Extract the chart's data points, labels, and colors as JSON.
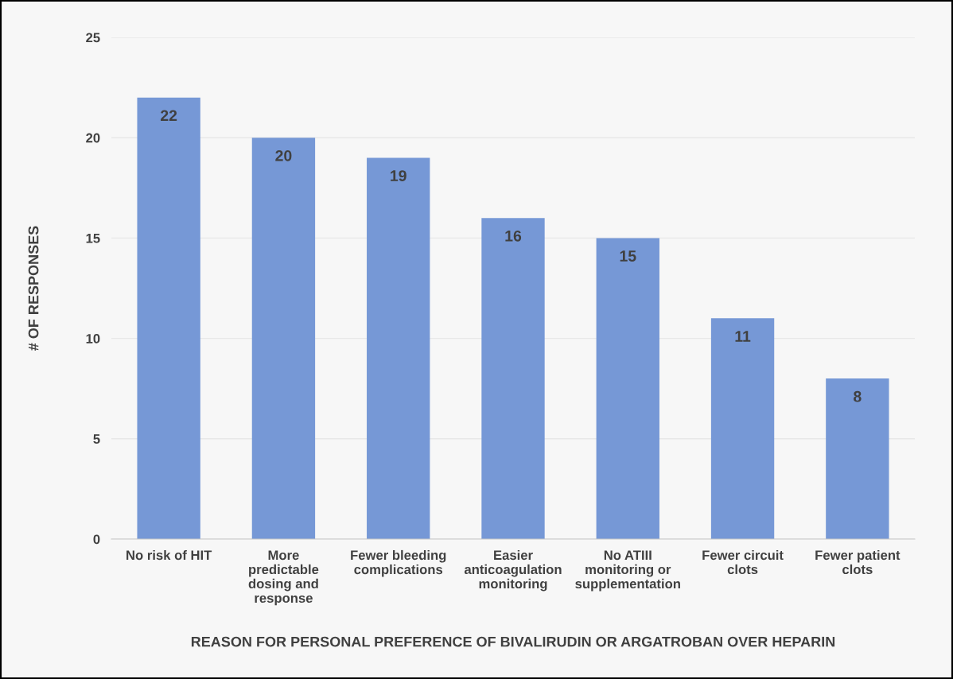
{
  "chart_data": {
    "type": "bar",
    "categories": [
      "No risk of HIT",
      "More\npredictable\ndosing and\nresponse",
      "Fewer bleeding\ncomplications",
      "Easier\nanticoagulation\nmonitoring",
      "No ATIII\nmonitoring or\nsupplementation",
      "Fewer circuit\nclots",
      "Fewer patient\nclots"
    ],
    "values": [
      22,
      20,
      19,
      16,
      15,
      11,
      8
    ],
    "color": "#7698d6",
    "data_labels": true,
    "xlabel": "REASON FOR PERSONAL PREFERENCE OF BIVALIRUDIN OR ARGATROBAN OVER HEPARIN",
    "ylabel": "# OF RESPONSES",
    "ylim": [
      0,
      25
    ],
    "yticks": [
      0,
      5,
      10,
      15,
      20,
      25
    ],
    "grid": "y",
    "legend": false
  }
}
